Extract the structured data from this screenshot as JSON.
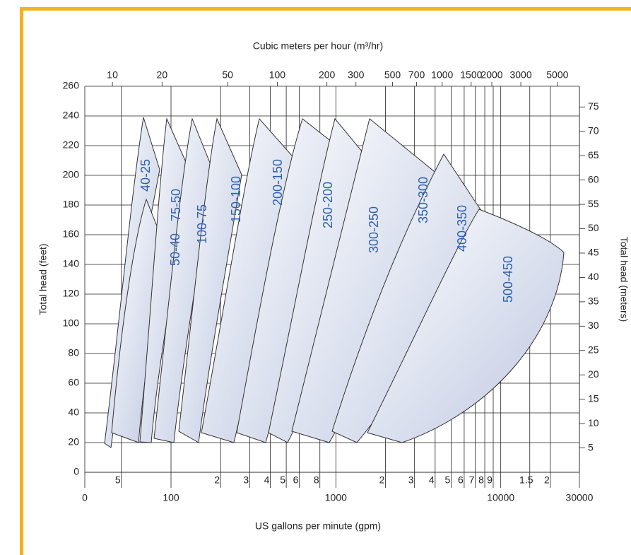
{
  "chart_data": {
    "type": "region",
    "top_axis_label": "Cubic meters per hour (m³/hr)",
    "x_label": "US gallons per minute (gpm)",
    "y_label": "Total head (feet)",
    "y2_label": "Total head (meters)",
    "x_log": true,
    "grid": true,
    "xlim": [
      30,
      30000
    ],
    "x_origin_label": "0",
    "xticks": [
      100,
      1000,
      10000,
      30000
    ],
    "xticks_minor": [
      {
        "value": 50,
        "label": "5"
      },
      {
        "value": 200,
        "label": "2"
      },
      {
        "value": 300,
        "label": "3"
      },
      {
        "value": 400,
        "label": "4"
      },
      {
        "value": 500,
        "label": "5"
      },
      {
        "value": 600,
        "label": "6"
      },
      {
        "value": 800,
        "label": "8"
      },
      {
        "value": 2000,
        "label": "2"
      },
      {
        "value": 3000,
        "label": "3"
      },
      {
        "value": 4000,
        "label": "4"
      },
      {
        "value": 5000,
        "label": "5"
      },
      {
        "value": 6000,
        "label": "6"
      },
      {
        "value": 7000,
        "label": "7"
      },
      {
        "value": 8000,
        "label": "8"
      },
      {
        "value": 9000,
        "label": "9"
      },
      {
        "value": 15000,
        "label": "1.5"
      },
      {
        "value": 20000,
        "label": "2"
      }
    ],
    "x2lim": [
      6.8,
      6800
    ],
    "x2ticks": [
      10,
      20,
      50,
      100,
      200,
      300,
      500,
      700,
      1000,
      1500,
      2000,
      3000,
      5000
    ],
    "ylim": [
      0,
      260
    ],
    "yticks": [
      0,
      20,
      40,
      60,
      80,
      100,
      120,
      140,
      160,
      180,
      200,
      220,
      240,
      260
    ],
    "y2lim": [
      0,
      79.25
    ],
    "y2ticks": [
      5,
      10,
      15,
      20,
      25,
      30,
      35,
      40,
      45,
      50,
      55,
      60,
      65,
      70,
      75
    ],
    "regions": [
      "40-25",
      "50-40",
      "75-50",
      "100-75",
      "150-100",
      "200-150",
      "250-200",
      "300-250",
      "350-300",
      "400-350",
      "500-450"
    ]
  }
}
